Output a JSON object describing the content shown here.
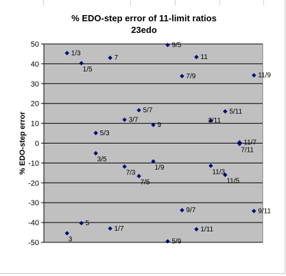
{
  "chart_data": {
    "type": "scatter",
    "title": "% EDO-step error of 11-limit ratios",
    "subtitle": "23edo",
    "xlabel": "",
    "ylabel": "% EDO-step error",
    "ylim": [
      -50,
      50
    ],
    "yticks": [
      50,
      40,
      30,
      20,
      10,
      0,
      -10,
      -20,
      -30,
      -40,
      -50
    ],
    "xlim": [
      0,
      14
    ],
    "grid": true,
    "legend": "none",
    "colors": {
      "plot_bg": "#c0c0c0",
      "marker": "#000080",
      "gridline": "#000000"
    },
    "points": [
      {
        "label": "1/3",
        "x": 1,
        "y": 45.4
      },
      {
        "label": "3",
        "x": 1,
        "y": -45.4
      },
      {
        "label": "1/5",
        "x": 2,
        "y": 40.3
      },
      {
        "label": "5",
        "x": 2,
        "y": -40.3
      },
      {
        "label": "5/3",
        "x": 3,
        "y": 5.1
      },
      {
        "label": "3/5",
        "x": 3,
        "y": -5.1
      },
      {
        "label": "7",
        "x": 4,
        "y": 43.0
      },
      {
        "label": "1/7",
        "x": 4,
        "y": -43.0
      },
      {
        "label": "3/7",
        "x": 5,
        "y": 11.8
      },
      {
        "label": "7/3",
        "x": 5,
        "y": -11.8
      },
      {
        "label": "5/7",
        "x": 6,
        "y": 16.6
      },
      {
        "label": "7/5",
        "x": 6,
        "y": -16.6
      },
      {
        "label": "9",
        "x": 7,
        "y": 9.2
      },
      {
        "label": "1/9",
        "x": 7,
        "y": -9.2
      },
      {
        "label": "9/5",
        "x": 8,
        "y": 49.5
      },
      {
        "label": "5/9",
        "x": 8,
        "y": -49.5
      },
      {
        "label": "7/9",
        "x": 9,
        "y": 33.8
      },
      {
        "label": "9/7",
        "x": 9,
        "y": -33.8
      },
      {
        "label": "11",
        "x": 10,
        "y": 43.4
      },
      {
        "label": "1/11",
        "x": 10,
        "y": -43.4
      },
      {
        "label": "3/11",
        "x": 11,
        "y": 11.4
      },
      {
        "label": "11/3",
        "x": 11,
        "y": -11.4
      },
      {
        "label": "5/11",
        "x": 12,
        "y": 16.0
      },
      {
        "label": "11/5",
        "x": 12,
        "y": -16.0
      },
      {
        "label": "11/7",
        "x": 13,
        "y": 0.4
      },
      {
        "label": "7/11",
        "x": 13,
        "y": -0.4
      },
      {
        "label": "11/9",
        "x": 14,
        "y": 34.2
      },
      {
        "label": "9/11",
        "x": 14,
        "y": -34.2
      }
    ]
  }
}
